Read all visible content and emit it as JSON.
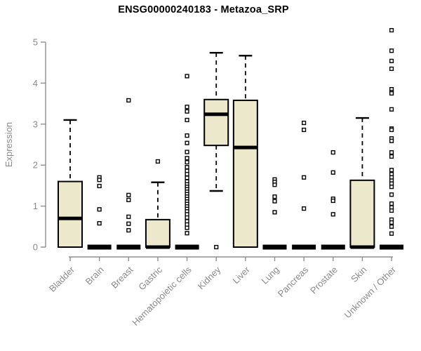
{
  "header": {
    "title": "ENSG00000240183 - Metazoa_SRP"
  },
  "chart_data": {
    "type": "box",
    "title": "ENSG00000240183 - Metazoa_SRP",
    "xlabel": "",
    "ylabel": "Expression",
    "ylim": [
      0,
      5.4
    ],
    "yticks": [
      0,
      1,
      2,
      3,
      4,
      5
    ],
    "grid": false,
    "legend": null,
    "categories": [
      "Bladder",
      "Brain",
      "Breast",
      "Gastric",
      "Hematopoietic cells",
      "Kidney",
      "Liver",
      "Lung",
      "Pancreas",
      "Prostate",
      "Skin",
      "Unknown / Other"
    ],
    "series": [
      {
        "category": "Bladder",
        "whisker_low": 0,
        "q1": 0,
        "median": 0.7,
        "q3": 1.6,
        "whisker_high": 3.1,
        "outliers": []
      },
      {
        "category": "Brain",
        "whisker_low": 0,
        "q1": 0,
        "median": 0,
        "q3": 0,
        "whisker_high": 0,
        "outliers": [
          1.7,
          1.64,
          1.49,
          0.92,
          0.58
        ]
      },
      {
        "category": "Breast",
        "whisker_low": 0,
        "q1": 0,
        "median": 0,
        "q3": 0,
        "whisker_high": 0,
        "outliers": [
          3.58,
          1.27,
          1.15,
          0.74,
          0.57,
          0.41
        ]
      },
      {
        "category": "Gastric",
        "whisker_low": 0,
        "q1": 0,
        "median": 0,
        "q3": 0.67,
        "whisker_high": 1.58,
        "outliers": [
          2.09
        ]
      },
      {
        "category": "Hematopoietic cells",
        "whisker_low": 0,
        "q1": 0,
        "median": 0,
        "q3": 0,
        "whisker_high": 0,
        "outliers": [
          4.17,
          3.42,
          3.31,
          3.1,
          2.72,
          2.54,
          2.32,
          2.17,
          2.07,
          1.95,
          1.86,
          1.78,
          1.69,
          1.6,
          1.53,
          1.47,
          1.41,
          1.35,
          1.29,
          1.23,
          1.17,
          1.11,
          1.05,
          0.99,
          0.93,
          0.87,
          0.8,
          0.72,
          0.63,
          0.55,
          0.47,
          0.34
        ]
      },
      {
        "category": "Kidney",
        "whisker_low": 1.37,
        "q1": 2.48,
        "median": 3.24,
        "q3": 3.6,
        "whisker_high": 4.74,
        "outliers": [
          0
        ]
      },
      {
        "category": "Liver",
        "whisker_low": 0,
        "q1": 0,
        "median": 2.43,
        "q3": 3.58,
        "whisker_high": 4.67,
        "outliers": []
      },
      {
        "category": "Lung",
        "whisker_low": 0,
        "q1": 0,
        "median": 0,
        "q3": 0,
        "whisker_high": 0,
        "outliers": [
          1.65,
          1.59,
          1.52,
          1.23,
          1.12,
          0.85
        ]
      },
      {
        "category": "Pancreas",
        "whisker_low": 0,
        "q1": 0,
        "median": 0,
        "q3": 0,
        "whisker_high": 0,
        "outliers": [
          3.03,
          2.86,
          1.7,
          0.94
        ]
      },
      {
        "category": "Prostate",
        "whisker_low": 0,
        "q1": 0,
        "median": 0,
        "q3": 0,
        "whisker_high": 0,
        "outliers": [
          2.31,
          1.82,
          1.18,
          1.13,
          0.8
        ]
      },
      {
        "category": "Skin",
        "whisker_low": 0,
        "q1": 0,
        "median": 0,
        "q3": 1.63,
        "whisker_high": 3.15,
        "outliers": []
      },
      {
        "category": "Unknown / Other",
        "whisker_low": 0,
        "q1": 0,
        "median": 0,
        "q3": 0,
        "whisker_high": 0,
        "outliers": [
          5.29,
          4.79,
          4.54,
          4.35,
          3.85,
          3.78,
          3.75,
          3.36,
          2.89,
          2.86,
          2.65,
          2.59,
          2.31,
          2.21,
          1.88,
          1.78,
          1.7,
          1.62,
          1.55,
          1.47,
          1.28,
          1.06,
          0.97,
          0.89,
          0.67,
          0.6,
          0.5,
          0.33
        ]
      }
    ],
    "colors": {
      "box_fill": "#ece8cc",
      "box_border": "#000000",
      "median": "#000000",
      "whisker": "#000000",
      "outlier_stroke": "#000000",
      "axis": "#8f8f8f",
      "tick_label": "#8a8a8a",
      "title": "#000000",
      "background": "#ffffff"
    }
  }
}
